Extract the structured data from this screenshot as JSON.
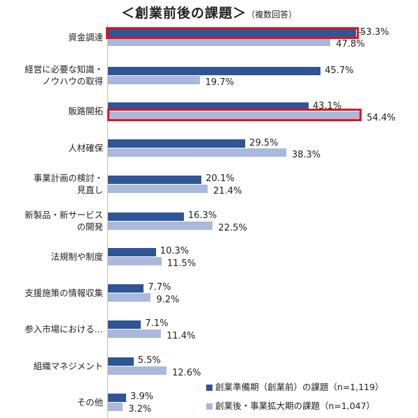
{
  "chart_data": {
    "type": "bar",
    "orientation": "horizontal",
    "title": "＜創業前後の課題＞",
    "subtitle": "（複数回答）",
    "xlabel": "",
    "ylabel": "",
    "unit": "%",
    "categories": [
      "資金調達",
      "経営に必要な知識・ノウハウの取得",
      "販路開拓",
      "人材確保",
      "事業計画の検討・見直し",
      "新製品・新サービスの開発",
      "法規制や制度",
      "支援施策の情報収集",
      "参入市場における…",
      "組織マネジメント",
      "その他"
    ],
    "series": [
      {
        "name": "創業準備期（創業前）の課題（n=1,119）",
        "color": "#2f5597",
        "values": [
          53.3,
          45.7,
          43.1,
          29.5,
          20.1,
          16.3,
          10.3,
          7.7,
          7.1,
          5.5,
          3.9
        ]
      },
      {
        "name": "創業後・事業拡大期の課題（n=1,047）",
        "color": "#a9b8dc",
        "values": [
          47.8,
          19.7,
          54.4,
          38.3,
          21.4,
          22.5,
          11.5,
          9.2,
          11.4,
          12.6,
          3.2
        ]
      }
    ],
    "highlights": [
      {
        "category": "資金調達",
        "series": 0,
        "color": "#e8111b"
      },
      {
        "category": "販路開拓",
        "series": 1,
        "color": "#e8111b"
      }
    ],
    "grid": false,
    "legend_position": "bottom-right"
  },
  "labels": {
    "cat0": [
      "資金調達"
    ],
    "cat1": [
      "経営に必要な知識・",
      "ノウハウの取得"
    ],
    "cat2": [
      "販路開拓"
    ],
    "cat3": [
      "人材確保"
    ],
    "cat4": [
      "事業計画の検討・",
      "見直し"
    ],
    "cat5": [
      "新製品・新サービス",
      "の開発"
    ],
    "cat6": [
      "法規制や制度"
    ],
    "cat7": [
      "支援施策の情報収集"
    ],
    "cat8": [
      "参入市場における…"
    ],
    "cat9": [
      "組織マネジメント"
    ],
    "cat10": [
      "その他"
    ]
  },
  "value_labels": {
    "s1": [
      "53.3%",
      "45.7%",
      "43.1%",
      "29.5%",
      "20.1%",
      "16.3%",
      "10.3%",
      "7.7%",
      "7.1%",
      "5.5%",
      "3.9%"
    ],
    "s2": [
      "47.8%",
      "19.7%",
      "54.4%",
      "38.3%",
      "21.4%",
      "22.5%",
      "11.5%",
      "9.2%",
      "11.4%",
      "12.6%",
      "3.2%"
    ]
  },
  "legend": {
    "s1": "創業準備期（創業前）の課題（n=1,119）",
    "s2": "創業後・事業拡大期の課題（n=1,047）"
  }
}
